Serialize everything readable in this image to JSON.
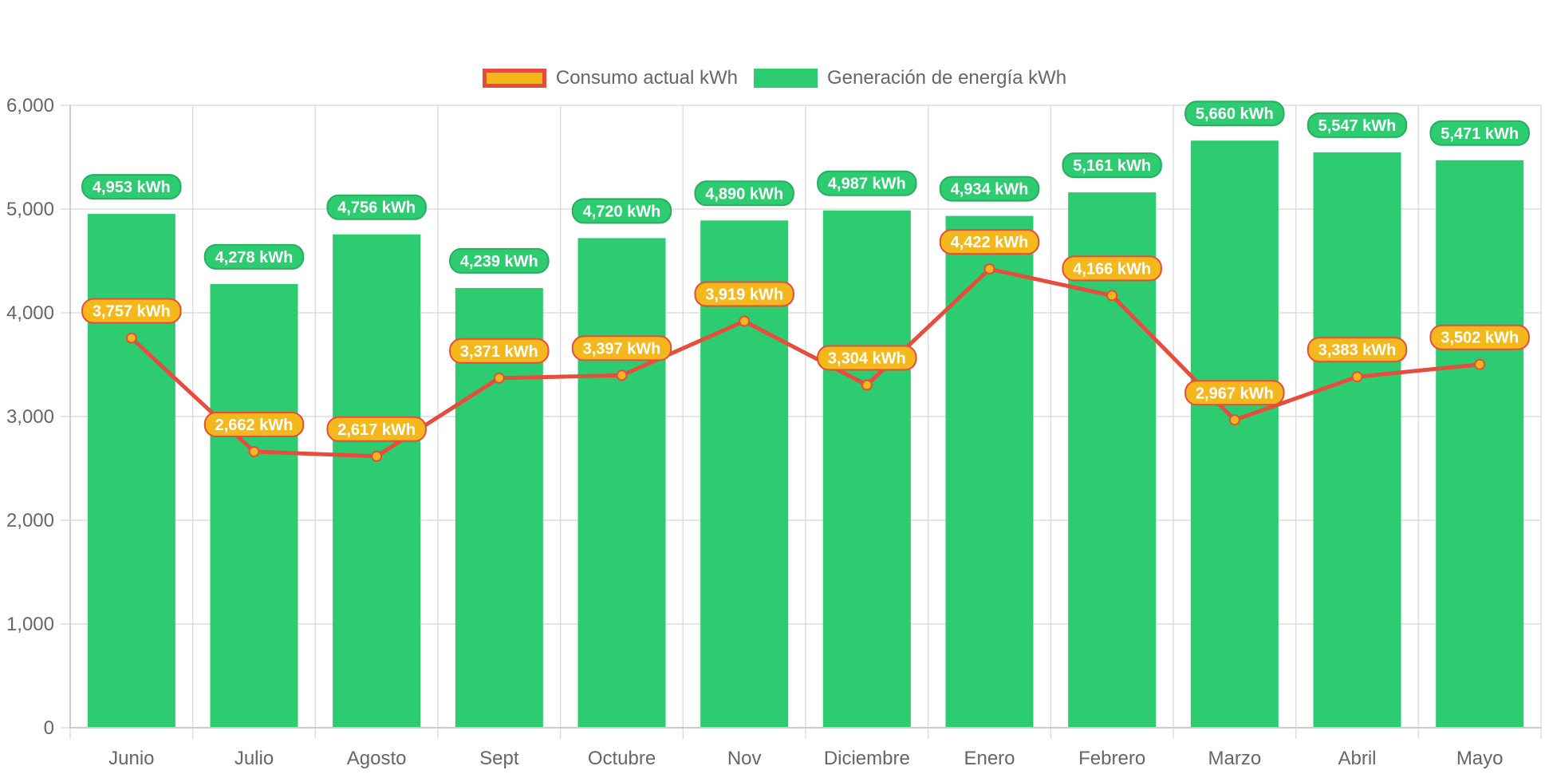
{
  "chart_data": {
    "type": "bar",
    "categories": [
      "Junio",
      "Julio",
      "Agosto",
      "Sept",
      "Octubre",
      "Nov",
      "Diciembre",
      "Enero",
      "Febrero",
      "Marzo",
      "Abril",
      "Mayo"
    ],
    "series": [
      {
        "name": "Consumo actual kWh",
        "type": "line",
        "values": [
          3757,
          2662,
          2617,
          3371,
          3397,
          3919,
          3304,
          4422,
          4166,
          2967,
          3383,
          3502
        ],
        "labels": [
          "3,757 kWh",
          "2,662 kWh",
          "2,617 kWh",
          "3,371 kWh",
          "3,397 kWh",
          "3,919 kWh",
          "3,304 kWh",
          "4,422 kWh",
          "4,166 kWh",
          "2,967 kWh",
          "3,383 kWh",
          "3,502 kWh"
        ],
        "line_color": "#e74c3c",
        "fill_color": "#f5b81c"
      },
      {
        "name": "Generación de energía kWh",
        "type": "bar",
        "values": [
          4953,
          4278,
          4756,
          4239,
          4720,
          4890,
          4987,
          4934,
          5161,
          5660,
          5547,
          5471
        ],
        "labels": [
          "4,953 kWh",
          "4,278 kWh",
          "4,756 kWh",
          "4,239 kWh",
          "4,720 kWh",
          "4,890 kWh",
          "4,987 kWh",
          "4,934 kWh",
          "5,161 kWh",
          "5,660 kWh",
          "5,547 kWh",
          "5,471 kWh"
        ],
        "color": "#2ecc71"
      }
    ],
    "ylim": [
      0,
      6000
    ],
    "yticks": [
      0,
      1000,
      2000,
      3000,
      4000,
      5000,
      6000
    ],
    "ytick_labels": [
      "0",
      "1,000",
      "2,000",
      "3,000",
      "4,000",
      "5,000",
      "6,000"
    ],
    "grid": true,
    "legend_position": "top"
  }
}
